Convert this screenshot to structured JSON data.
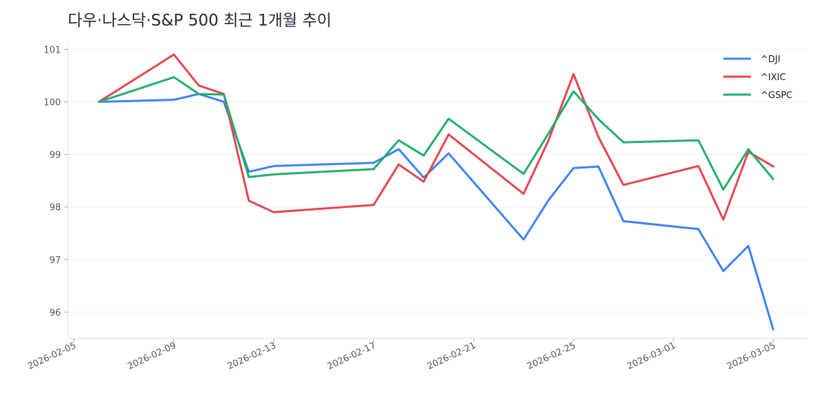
{
  "chart_data": {
    "type": "line",
    "title": "다우·나스닥·S&P 500 최근 1개월 추이",
    "xlabel": "",
    "ylabel": "",
    "x": [
      "2026-02-06",
      "2026-02-09",
      "2026-02-10",
      "2026-02-11",
      "2026-02-12",
      "2026-02-13",
      "2026-02-17",
      "2026-02-18",
      "2026-02-19",
      "2026-02-20",
      "2026-02-23",
      "2026-02-24",
      "2026-02-25",
      "2026-02-26",
      "2026-02-27",
      "2026-03-02",
      "2026-03-03",
      "2026-03-04",
      "2026-03-05"
    ],
    "x_ticks": [
      "2026-02-05",
      "2026-02-09",
      "2026-02-13",
      "2026-02-17",
      "2026-02-21",
      "2026-02-25",
      "2026-03-01",
      "2026-03-05"
    ],
    "y_ticks": [
      96,
      97,
      98,
      99,
      100,
      101
    ],
    "ylim": [
      95.5,
      101.15
    ],
    "xlim": [
      "2026-02-04T18:00",
      "2026-03-06T09:00"
    ],
    "grid": "horizontal",
    "legend_position": "top-right",
    "series": [
      {
        "name": "^DJI",
        "color": "#3b82f6",
        "values": [
          100.0,
          100.04,
          100.15,
          100.0,
          98.67,
          98.78,
          98.84,
          99.1,
          98.56,
          99.02,
          97.38,
          98.13,
          98.74,
          98.77,
          97.73,
          97.58,
          96.78,
          97.26,
          95.67
        ]
      },
      {
        "name": "^IXIC",
        "color": "#e5454e",
        "values": [
          100.0,
          100.9,
          100.31,
          100.15,
          98.12,
          97.9,
          98.04,
          98.81,
          98.48,
          99.38,
          98.25,
          99.27,
          100.53,
          99.33,
          98.42,
          98.78,
          97.76,
          99.05,
          98.77
        ]
      },
      {
        "name": "^GSPC",
        "color": "#1fae6e",
        "values": [
          100.0,
          100.47,
          100.15,
          100.14,
          98.57,
          98.62,
          98.72,
          99.27,
          98.98,
          99.68,
          98.63,
          99.4,
          100.2,
          99.67,
          99.23,
          99.27,
          98.33,
          99.1,
          98.53
        ]
      }
    ]
  }
}
